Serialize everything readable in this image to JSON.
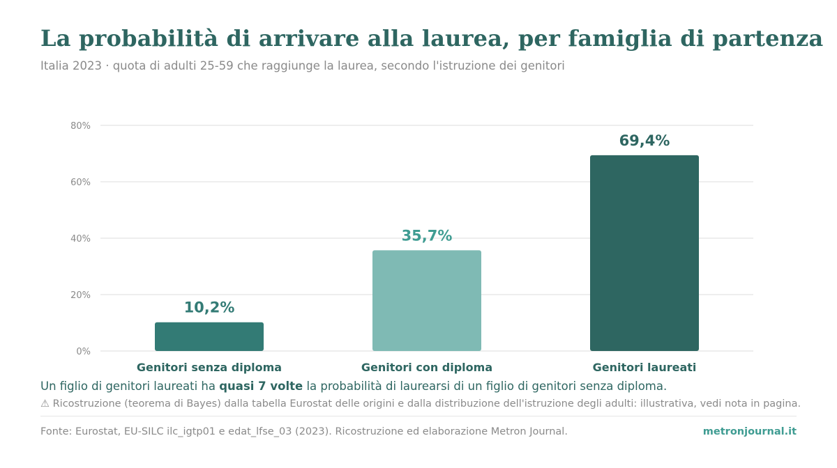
{
  "header": {
    "title": "La probabilità di arrivare alla laurea, per famiglia di partenza",
    "subtitle": "Italia 2023 · quota di adulti 25-59 che raggiunge la laurea, secondo l'istruzione dei genitori"
  },
  "chart_data": {
    "type": "bar",
    "categories": [
      "Genitori senza diploma",
      "Genitori con diploma",
      "Genitori laureati"
    ],
    "values": [
      10.2,
      35.7,
      69.4
    ],
    "value_labels": [
      "10,2%",
      "35,7%",
      "69,4%"
    ],
    "ylim": [
      0,
      80
    ],
    "yticks": [
      0,
      20,
      40,
      60,
      80
    ],
    "ytick_labels": [
      "0%",
      "20%",
      "40%",
      "60%",
      "80%"
    ],
    "grid": true,
    "bar_colors": [
      "#337b75",
      "#7fbab4",
      "#2e6661"
    ],
    "value_label_colors": [
      "#337b75",
      "#3f9c92",
      "#2e6661"
    ]
  },
  "takeaway": {
    "before": "Un figlio di genitori laureati ha ",
    "bold": "quasi 7 volte",
    "after": " la probabilità di laurearsi di un figlio di genitori senza diploma."
  },
  "note": "⚠ Ricostruzione (teorema di Bayes) dalla tabella Eurostat delle origini e dalla distribuzione dell'istruzione degli adulti: illustrativa, vedi nota in pagina.",
  "footer": {
    "source": "Fonte: Eurostat, EU-SILC ilc_igtp01 e edat_lfse_03 (2023). Ricostruzione ed elaborazione Metron Journal.",
    "brand": "metronjournal.it"
  },
  "colors": {
    "accent": "#2e6661",
    "accent_light": "#3f9c92",
    "muted_text": "#8a8a8a",
    "grid": "#e8e8e8"
  }
}
